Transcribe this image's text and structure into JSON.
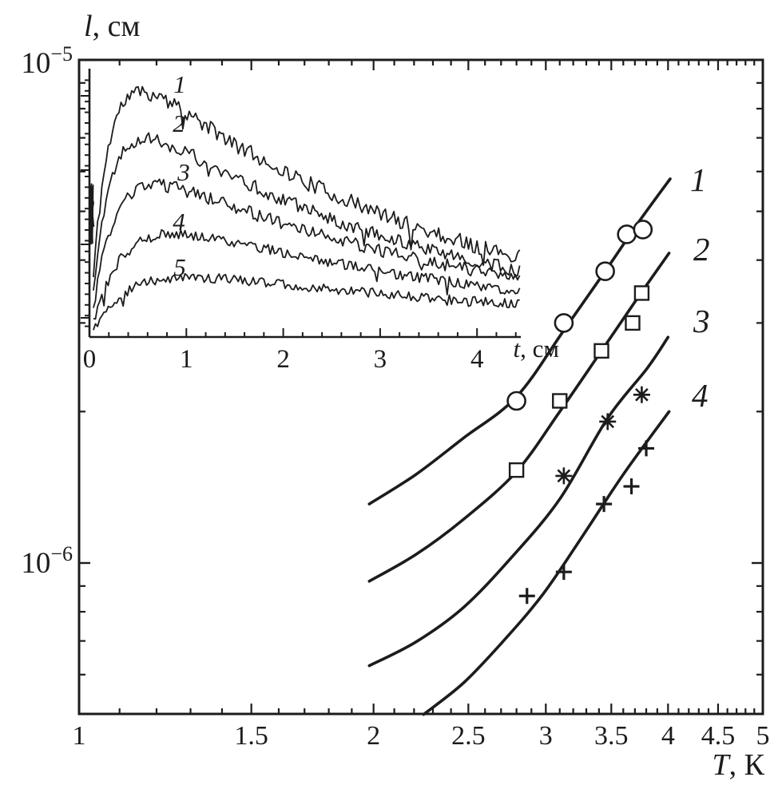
{
  "figure": {
    "background": "#ffffff",
    "ink": "#1c1c1c"
  },
  "main": {
    "ylabel": {
      "var": "l",
      "rest": ", см"
    },
    "xlabel": {
      "var": "T",
      "rest": ", К"
    },
    "x_ticks": [
      "1",
      "1.5",
      "2",
      "2.5",
      "3",
      "3.5",
      "4",
      "4.5",
      "5"
    ],
    "y_tick_labels": [
      {
        "base": "10",
        "exp": "−5"
      },
      {
        "base": "10",
        "exp": "−6"
      }
    ],
    "curve_labels": [
      "1",
      "2",
      "3",
      "4"
    ]
  },
  "inset": {
    "xlabel": {
      "var": "t",
      "rest": ", см"
    },
    "x_ticks": [
      "0",
      "1",
      "2",
      "3",
      "4"
    ],
    "curve_labels": [
      "1",
      "2",
      "3",
      "4",
      "5"
    ]
  },
  "chart_data": [
    {
      "type": "scatter",
      "title": "",
      "xlabel": "T, К",
      "ylabel": "l, см",
      "x_scale": "log",
      "y_scale": "log",
      "xlim": [
        1,
        5
      ],
      "ylim": [
        5e-07,
        1e-05
      ],
      "x_tick_values": [
        1,
        1.5,
        2,
        2.5,
        3,
        3.5,
        4,
        4.5,
        5
      ],
      "y_tick_values": [
        1e-05,
        1e-06
      ],
      "grid": false,
      "legend_position": "labels-at-curve-ends",
      "series": [
        {
          "name": "1",
          "marker": "circle",
          "points": [
            [
              2.8,
              2.1e-06
            ],
            [
              3.13,
              3e-06
            ],
            [
              3.45,
              3.8e-06
            ],
            [
              3.63,
              4.5e-06
            ],
            [
              3.77,
              4.6e-06
            ]
          ],
          "fit_curve": [
            [
              1.98,
              1.31e-06
            ],
            [
              2.21,
              1.5e-06
            ],
            [
              2.47,
              1.77e-06
            ],
            [
              2.8,
              2.14e-06
            ],
            [
              3.13,
              2.9e-06
            ],
            [
              3.45,
              3.8e-06
            ],
            [
              3.73,
              4.75e-06
            ],
            [
              4.02,
              5.8e-06
            ]
          ]
        },
        {
          "name": "2",
          "marker": "square",
          "points": [
            [
              2.8,
              1.53e-06
            ],
            [
              3.1,
              2.1e-06
            ],
            [
              3.42,
              2.64e-06
            ],
            [
              3.68,
              3e-06
            ],
            [
              3.76,
              3.44e-06
            ]
          ],
          "fit_curve": [
            [
              1.98,
              9.2e-07
            ],
            [
              2.21,
              1.04e-06
            ],
            [
              2.47,
              1.22e-06
            ],
            [
              2.8,
              1.52e-06
            ],
            [
              3.1,
              2e-06
            ],
            [
              3.42,
              2.64e-06
            ],
            [
              3.73,
              3.38e-06
            ],
            [
              4.01,
              4.13e-06
            ]
          ]
        },
        {
          "name": "3",
          "marker": "asterisk",
          "points": [
            [
              3.13,
              1.49e-06
            ],
            [
              3.47,
              1.91e-06
            ],
            [
              3.76,
              2.16e-06
            ]
          ],
          "fit_curve": [
            [
              1.98,
              6.25e-07
            ],
            [
              2.21,
              6.97e-07
            ],
            [
              2.47,
              8.15e-07
            ],
            [
              2.76,
              1.02e-06
            ],
            [
              3.1,
              1.34e-06
            ],
            [
              3.47,
              1.94e-06
            ],
            [
              3.81,
              2.44e-06
            ],
            [
              4.0,
              2.81e-06
            ]
          ]
        },
        {
          "name": "4",
          "marker": "plus",
          "points": [
            [
              2.87,
              8.6e-07
            ],
            [
              3.13,
              9.6e-07
            ],
            [
              3.44,
              1.31e-06
            ],
            [
              3.67,
              1.42e-06
            ],
            [
              3.8,
              1.69e-06
            ]
          ],
          "fit_curve": [
            [
              2.25,
              5e-07
            ],
            [
              2.47,
              5.77e-07
            ],
            [
              2.71,
              6.97e-07
            ],
            [
              2.98,
              8.67e-07
            ],
            [
              3.27,
              1.13e-06
            ],
            [
              3.6,
              1.5e-06
            ],
            [
              4.01,
              2e-06
            ]
          ]
        }
      ]
    },
    {
      "type": "line",
      "title": "",
      "xlabel": "t, см",
      "ylabel": "",
      "xlim": [
        0,
        4.45
      ],
      "x_tick_values": [
        0,
        1,
        2,
        3,
        4
      ],
      "grid": false,
      "y_units": "arbitrary",
      "series": [
        {
          "name": "1",
          "amplitude": 1.15,
          "rise": 0.18,
          "decay": 0.3,
          "noise": 0.03,
          "seed": 11
        },
        {
          "name": "2",
          "amplitude": 0.95,
          "rise": 0.2,
          "decay": 0.3,
          "noise": 0.026,
          "seed": 22
        },
        {
          "name": "3",
          "amplitude": 0.74,
          "rise": 0.25,
          "decay": 0.27,
          "noise": 0.024,
          "seed": 33
        },
        {
          "name": "4",
          "amplitude": 0.53,
          "rise": 0.35,
          "decay": 0.25,
          "noise": 0.02,
          "seed": 44
        },
        {
          "name": "5",
          "amplitude": 0.3,
          "rise": 0.4,
          "decay": 0.2,
          "noise": 0.018,
          "seed": 55
        }
      ]
    }
  ]
}
